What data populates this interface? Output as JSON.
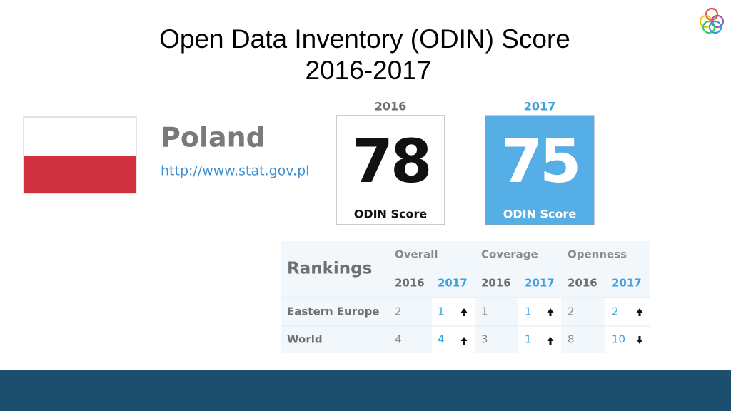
{
  "title": [
    "Open Data Inventory (ODIN) Score",
    "2016-2017"
  ],
  "country": {
    "name": "Poland",
    "url": "http://www.stat.gov.pl"
  },
  "scores": [
    {
      "year": "2016",
      "value": 78,
      "label": "ODIN Score"
    },
    {
      "year": "2017",
      "value": 75,
      "label": "ODIN Score"
    }
  ],
  "rankings": {
    "title": "Rankings",
    "groups": [
      "Overall",
      "Coverage",
      "Openness"
    ],
    "years": [
      "2016",
      "2017"
    ],
    "rows": [
      {
        "name": "Eastern Europe",
        "values": [
          2,
          1,
          1,
          1,
          2,
          2
        ]
      },
      {
        "name": "World",
        "values": [
          4,
          4,
          3,
          1,
          8,
          10
        ]
      }
    ]
  }
}
